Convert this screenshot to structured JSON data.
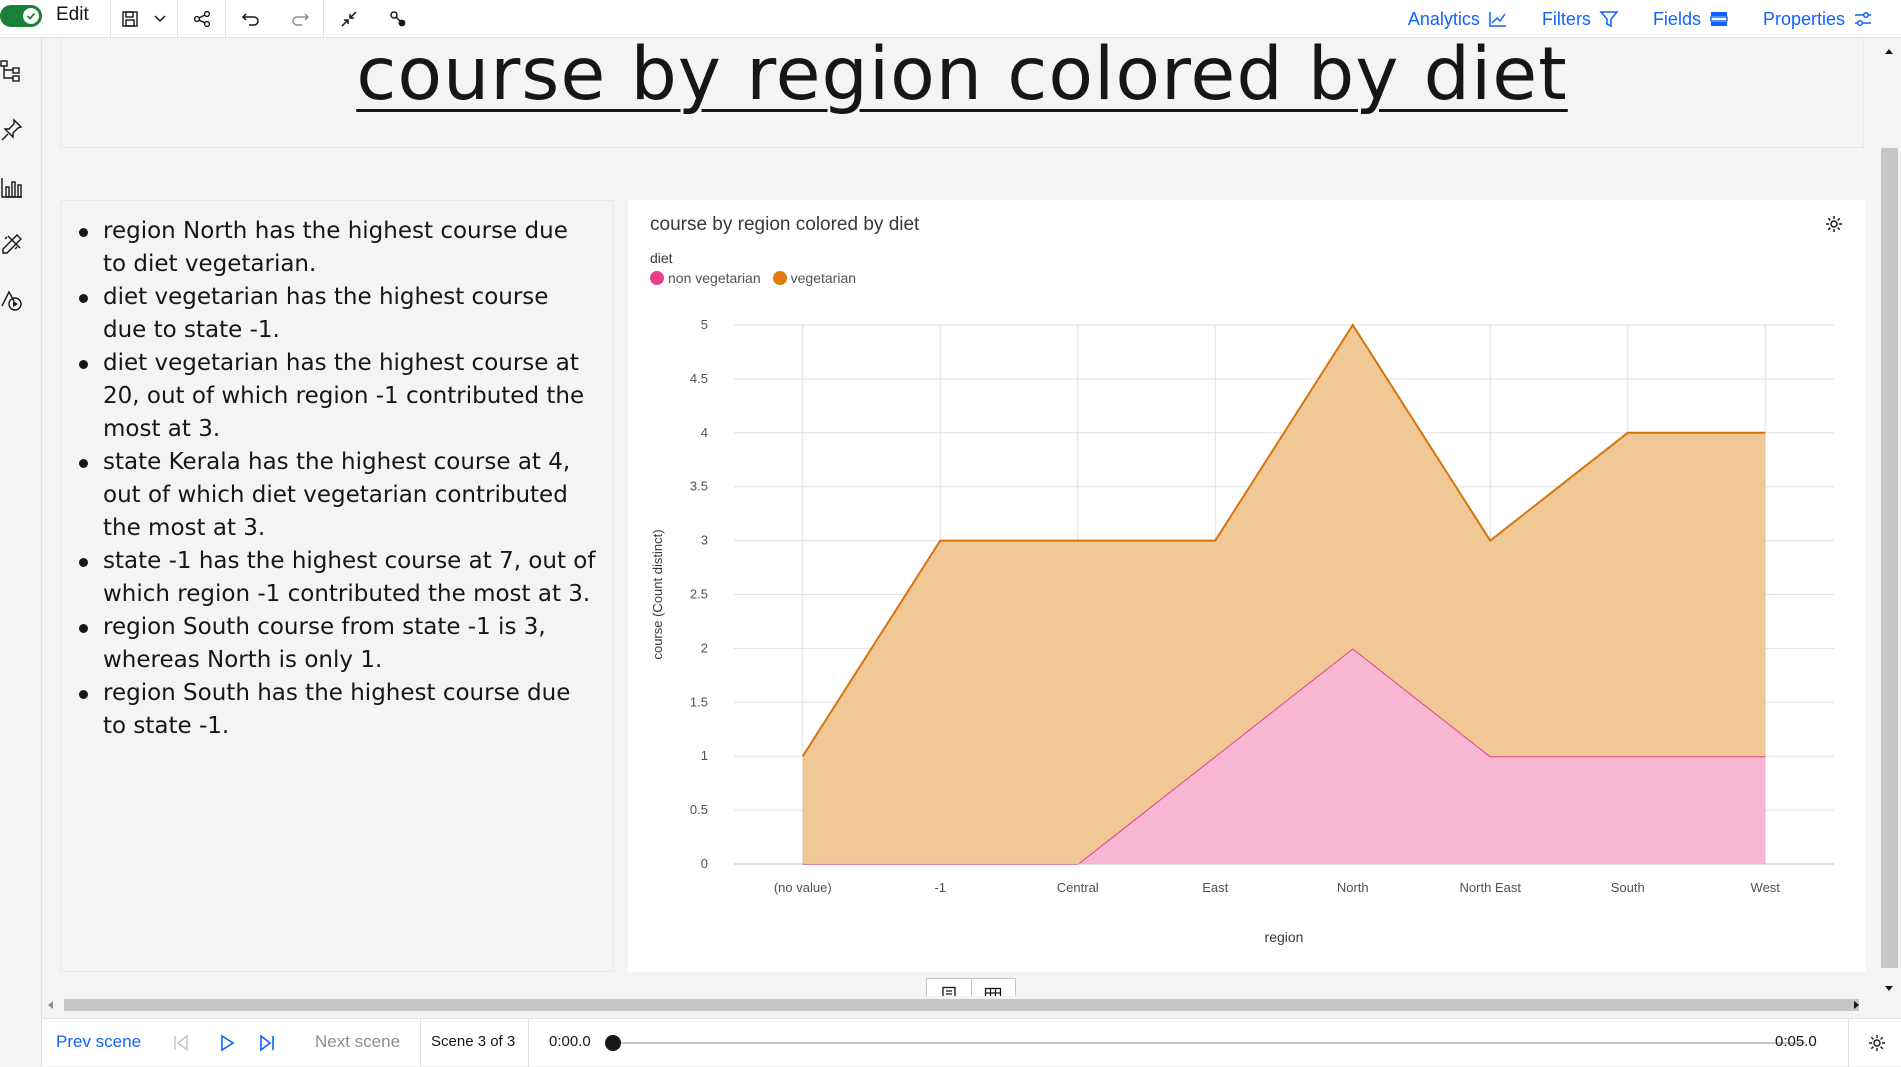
{
  "toolbar": {
    "edit_label": "Edit",
    "edit_toggle_on": true,
    "right_menu": [
      {
        "label": "Analytics",
        "icon": "chart-line-icon"
      },
      {
        "label": "Filters",
        "icon": "filter-icon"
      },
      {
        "label": "Fields",
        "icon": "data-table-icon"
      },
      {
        "label": "Properties",
        "icon": "settings-adjust-icon"
      }
    ]
  },
  "canvas": {
    "title": "course by region colored by diet"
  },
  "insights": [
    "region North has the highest course due to diet vegetarian.",
    "diet vegetarian has the highest course due to state -1.",
    "diet vegetarian has the highest course at 20, out of which region -1 contributed the most at 3.",
    "state Kerala has the highest course at 4, out of which diet vegetarian contributed the most at 3.",
    "state -1 has the highest course at 7, out of which region -1 contributed the most at 3.",
    "region South course from state -1 is 3, whereas North is only 1.",
    "region South has the highest course due to state -1."
  ],
  "chart_data": {
    "type": "area",
    "stacked": true,
    "title": "course by region colored by diet",
    "xlabel": "region",
    "ylabel": "course (Count distinct)",
    "legend_title": "diet",
    "legend_position": "top-left",
    "categories": [
      "(no value)",
      "-1",
      "Central",
      "East",
      "North",
      "North East",
      "South",
      "West"
    ],
    "ylim": [
      0,
      5
    ],
    "yticks": [
      "0",
      "0.5",
      "1",
      "1.5",
      "2",
      "2.5",
      "3",
      "3.5",
      "4",
      "4.5",
      "5"
    ],
    "grid": true,
    "series": [
      {
        "name": "non vegetarian",
        "color": "#e5428e",
        "fill": "#f7b6d2",
        "values": [
          0,
          0,
          0,
          1,
          2,
          1,
          1,
          1
        ]
      },
      {
        "name": "vegetarian",
        "color": "#d6740d",
        "fill": "#f0c896",
        "values": [
          1,
          3,
          3,
          2,
          3,
          2,
          3,
          3
        ]
      }
    ]
  },
  "bottombar": {
    "prev_label": "Prev scene",
    "next_label": "Next scene",
    "scene_label": "Scene 3 of 3",
    "time_start": "0:00.0",
    "time_end": "0:05.0",
    "progress": 0
  }
}
